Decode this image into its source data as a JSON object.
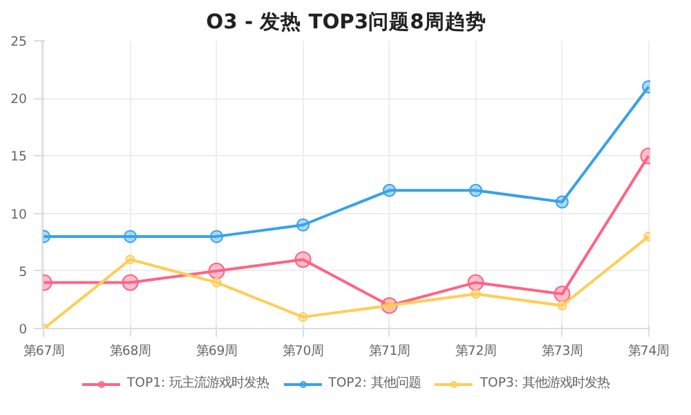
{
  "chart_data": {
    "type": "line",
    "title": "O3 - 发热 TOP3问题8周趋势",
    "categories": [
      "第67周",
      "第68周",
      "第69周",
      "第70周",
      "第71周",
      "第72周",
      "第73周",
      "第74周"
    ],
    "series": [
      {
        "name": "TOP1: 玩主流游戏时发热",
        "color": "#ff6384",
        "values": [
          4,
          4,
          5,
          6,
          2,
          4,
          3,
          15
        ]
      },
      {
        "name": "TOP2: 其他问题",
        "color": "#36a2eb",
        "values": [
          8,
          8,
          8,
          9,
          12,
          12,
          11,
          21
        ]
      },
      {
        "name": "TOP3: 其他游戏时发热",
        "color": "#ffcd56",
        "values": [
          0,
          6,
          4,
          1,
          2,
          3,
          2,
          8
        ]
      }
    ],
    "ylim": [
      0,
      25
    ],
    "yticks": [
      0,
      5,
      10,
      15,
      20,
      25
    ],
    "grid": true,
    "legend": "bottom",
    "marker": "circle",
    "line_style": "solid"
  }
}
